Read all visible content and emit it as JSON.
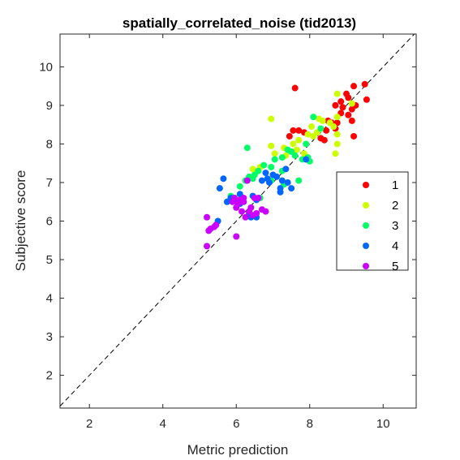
{
  "chart_data": {
    "type": "scatter",
    "title": "spatially_correlated_noise (tid2013)",
    "xlabel": "Metric prediction",
    "ylabel": "Subjective score",
    "xlim": [
      1.2,
      10.9
    ],
    "ylim": [
      1.15,
      10.85
    ],
    "x_ticks": [
      2,
      4,
      6,
      8,
      10
    ],
    "y_ticks": [
      2,
      3,
      4,
      5,
      6,
      7,
      8,
      9,
      10
    ],
    "grid": false,
    "diagonal_reference": true,
    "legend_position": "right",
    "series": [
      {
        "name": "1",
        "color": "#ff0000",
        "points": [
          [
            7.6,
            9.45
          ],
          [
            9.5,
            9.55
          ],
          [
            9.2,
            9.5
          ],
          [
            9.0,
            9.3
          ],
          [
            9.05,
            9.2
          ],
          [
            8.85,
            9.1
          ],
          [
            8.7,
            9.0
          ],
          [
            8.9,
            8.95
          ],
          [
            9.15,
            8.9
          ],
          [
            9.55,
            9.15
          ],
          [
            8.85,
            8.8
          ],
          [
            9.05,
            8.75
          ],
          [
            8.6,
            8.55
          ],
          [
            8.5,
            8.6
          ],
          [
            8.7,
            8.4
          ],
          [
            8.45,
            8.35
          ],
          [
            7.55,
            8.35
          ],
          [
            7.7,
            8.35
          ],
          [
            7.85,
            8.3
          ],
          [
            7.45,
            8.2
          ],
          [
            8.3,
            8.15
          ],
          [
            8.4,
            8.1
          ],
          [
            9.2,
            8.2
          ],
          [
            9.15,
            8.6
          ],
          [
            9.25,
            9.0
          ],
          [
            8.75,
            8.55
          ]
        ]
      },
      {
        "name": "2",
        "color": "#ccff00",
        "points": [
          [
            8.75,
            9.3
          ],
          [
            9.15,
            9.05
          ],
          [
            8.75,
            8.7
          ],
          [
            8.25,
            8.65
          ],
          [
            8.35,
            8.6
          ],
          [
            6.95,
            8.65
          ],
          [
            8.55,
            8.55
          ],
          [
            8.05,
            8.45
          ],
          [
            8.65,
            8.45
          ],
          [
            8.2,
            8.3
          ],
          [
            7.95,
            8.25
          ],
          [
            8.1,
            8.2
          ],
          [
            8.75,
            8.0
          ],
          [
            7.55,
            8.0
          ],
          [
            7.7,
            8.1
          ],
          [
            6.95,
            7.95
          ],
          [
            7.3,
            7.9
          ],
          [
            7.65,
            7.85
          ],
          [
            7.5,
            7.8
          ],
          [
            7.05,
            7.75
          ],
          [
            7.35,
            7.7
          ],
          [
            8.7,
            7.75
          ],
          [
            7.85,
            7.75
          ],
          [
            6.65,
            7.4
          ],
          [
            6.45,
            7.35
          ],
          [
            8.75,
            8.25
          ]
        ]
      },
      {
        "name": "3",
        "color": "#00ff66",
        "points": [
          [
            8.1,
            8.7
          ],
          [
            6.3,
            7.9
          ],
          [
            8.3,
            8.4
          ],
          [
            7.9,
            8.0
          ],
          [
            7.4,
            7.85
          ],
          [
            7.5,
            7.8
          ],
          [
            7.6,
            7.7
          ],
          [
            7.25,
            7.65
          ],
          [
            7.95,
            7.65
          ],
          [
            7.8,
            7.6
          ],
          [
            8.0,
            7.55
          ],
          [
            7.05,
            7.6
          ],
          [
            6.75,
            7.45
          ],
          [
            6.95,
            7.4
          ],
          [
            7.25,
            7.3
          ],
          [
            6.6,
            7.3
          ],
          [
            6.5,
            7.2
          ],
          [
            6.35,
            7.15
          ],
          [
            6.45,
            7.1
          ],
          [
            6.25,
            7.05
          ],
          [
            6.1,
            6.9
          ],
          [
            7.7,
            7.05
          ],
          [
            6.65,
            6.6
          ],
          [
            5.85,
            6.65
          ],
          [
            6.95,
            7.05
          ],
          [
            7.3,
            6.95
          ]
        ]
      },
      {
        "name": "4",
        "color": "#0066ff",
        "points": [
          [
            7.9,
            7.6
          ],
          [
            7.35,
            7.35
          ],
          [
            7.1,
            7.15
          ],
          [
            5.65,
            7.1
          ],
          [
            6.85,
            7.1
          ],
          [
            7.25,
            7.05
          ],
          [
            7.4,
            7.0
          ],
          [
            6.7,
            7.05
          ],
          [
            6.9,
            7.0
          ],
          [
            7.2,
            6.85
          ],
          [
            7.5,
            6.85
          ],
          [
            5.55,
            6.85
          ],
          [
            7.2,
            6.75
          ],
          [
            6.1,
            6.7
          ],
          [
            6.45,
            6.65
          ],
          [
            5.85,
            6.6
          ],
          [
            6.55,
            6.55
          ],
          [
            5.95,
            6.55
          ],
          [
            5.75,
            6.5
          ],
          [
            6.1,
            6.45
          ],
          [
            6.4,
            6.1
          ],
          [
            6.35,
            6.2
          ],
          [
            5.5,
            6.0
          ],
          [
            6.55,
            6.1
          ],
          [
            7.0,
            7.2
          ],
          [
            6.8,
            7.25
          ]
        ]
      },
      {
        "name": "5",
        "color": "#cc00ff",
        "points": [
          [
            6.3,
            7.05
          ],
          [
            6.6,
            6.6
          ],
          [
            6.5,
            6.6
          ],
          [
            6.2,
            6.5
          ],
          [
            6.05,
            6.45
          ],
          [
            5.9,
            6.5
          ],
          [
            6.0,
            6.35
          ],
          [
            6.4,
            6.35
          ],
          [
            6.15,
            6.25
          ],
          [
            6.35,
            6.25
          ],
          [
            6.7,
            6.3
          ],
          [
            6.8,
            6.25
          ],
          [
            6.55,
            6.2
          ],
          [
            6.45,
            6.15
          ],
          [
            6.25,
            6.1
          ],
          [
            5.2,
            6.1
          ],
          [
            5.45,
            5.9
          ],
          [
            5.4,
            5.85
          ],
          [
            5.3,
            5.8
          ],
          [
            5.25,
            5.75
          ],
          [
            6.0,
            5.6
          ],
          [
            5.2,
            5.35
          ],
          [
            5.95,
            6.6
          ],
          [
            6.1,
            6.55
          ],
          [
            6.2,
            6.6
          ]
        ]
      }
    ]
  }
}
